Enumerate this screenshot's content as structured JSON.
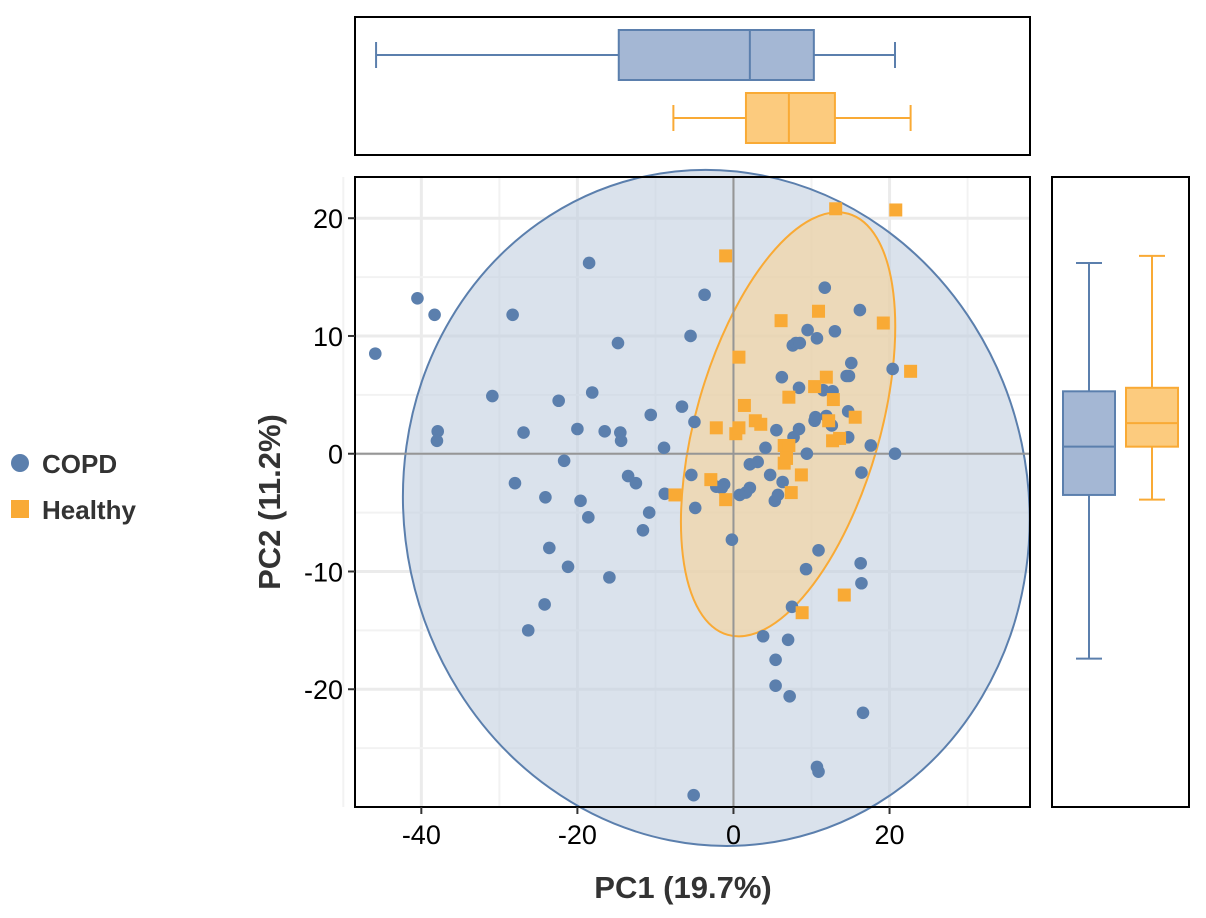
{
  "chart_data": {
    "type": "scatter",
    "xlabel": "PC1  (19.7%)",
    "ylabel": "PC2  (11.2%)",
    "xlim": [
      -48.5,
      38
    ],
    "ylim": [
      -30,
      23.5
    ],
    "xticks": [
      -40,
      -20,
      0,
      20
    ],
    "yticks": [
      -20,
      -10,
      0,
      10,
      20
    ],
    "xtick_labels": [
      "-40",
      "-20",
      "0",
      "20"
    ],
    "ytick_labels": [
      "-20",
      "-10",
      "0",
      "10",
      "20"
    ],
    "grid": true,
    "legend_position": "left",
    "series": [
      {
        "name": "COPD",
        "color": "#5b7fad",
        "marker": "circle",
        "points": [
          [
            -45.9,
            8.5
          ],
          [
            -40.5,
            13.2
          ],
          [
            -38.3,
            11.8
          ],
          [
            -37.9,
            1.9
          ],
          [
            -38.0,
            1.1
          ],
          [
            -30.9,
            4.9
          ],
          [
            -28.3,
            11.8
          ],
          [
            -28.0,
            -2.5
          ],
          [
            -26.9,
            1.8
          ],
          [
            -26.3,
            -15.0
          ],
          [
            -24.1,
            -3.7
          ],
          [
            -24.2,
            -12.8
          ],
          [
            -23.6,
            -8.0
          ],
          [
            -22.4,
            4.5
          ],
          [
            -21.7,
            -0.6
          ],
          [
            -21.2,
            -9.6
          ],
          [
            -18.5,
            16.2
          ],
          [
            -20.0,
            2.1
          ],
          [
            -19.6,
            -4.0
          ],
          [
            -18.6,
            -5.4
          ],
          [
            -18.1,
            5.2
          ],
          [
            -16.5,
            1.9
          ],
          [
            -15.9,
            -10.5
          ],
          [
            -14.8,
            9.4
          ],
          [
            -14.5,
            1.8
          ],
          [
            -14.4,
            1.1
          ],
          [
            -13.5,
            -1.9
          ],
          [
            -12.5,
            -2.5
          ],
          [
            -11.6,
            -6.5
          ],
          [
            -10.8,
            -5.0
          ],
          [
            -10.6,
            3.3
          ],
          [
            -8.9,
            0.5
          ],
          [
            -8.8,
            -3.4
          ],
          [
            -6.6,
            4.0
          ],
          [
            -5.5,
            10.0
          ],
          [
            -5.4,
            -1.8
          ],
          [
            -4.9,
            -4.6
          ],
          [
            -5.0,
            2.7
          ],
          [
            -3.7,
            13.5
          ],
          [
            -2.2,
            -2.8
          ],
          [
            -1.2,
            -2.6
          ],
          [
            -1.5,
            -2.9
          ],
          [
            -0.2,
            -7.3
          ],
          [
            0.8,
            -3.5
          ],
          [
            1.6,
            -3.3
          ],
          [
            2.1,
            -2.9
          ],
          [
            2.1,
            -0.9
          ],
          [
            3.1,
            -0.7
          ],
          [
            4.1,
            0.5
          ],
          [
            3.8,
            -15.5
          ],
          [
            4.7,
            -1.8
          ],
          [
            5.4,
            -17.5
          ],
          [
            5.3,
            -4.0
          ],
          [
            5.4,
            -19.7
          ],
          [
            5.5,
            2.0
          ],
          [
            5.7,
            -3.5
          ],
          [
            6.2,
            6.5
          ],
          [
            6.3,
            -2.4
          ],
          [
            6.8,
            0.2
          ],
          [
            7.0,
            -15.8
          ],
          [
            7.2,
            -20.6
          ],
          [
            7.5,
            -13.0
          ],
          [
            7.7,
            1.4
          ],
          [
            7.6,
            9.2
          ],
          [
            8.0,
            9.4
          ],
          [
            8.5,
            9.4
          ],
          [
            8.4,
            2.1
          ],
          [
            8.4,
            5.6
          ],
          [
            9.4,
            0.0
          ],
          [
            9.3,
            -9.8
          ],
          [
            9.5,
            10.5
          ],
          [
            10.4,
            2.8
          ],
          [
            10.5,
            3.1
          ],
          [
            10.7,
            -26.6
          ],
          [
            10.9,
            -27.0
          ],
          [
            10.9,
            -8.2
          ],
          [
            10.7,
            9.8
          ],
          [
            11.7,
            14.1
          ],
          [
            11.5,
            5.4
          ],
          [
            11.9,
            3.2
          ],
          [
            12.6,
            2.4
          ],
          [
            12.7,
            5.3
          ],
          [
            13.0,
            10.4
          ],
          [
            13.7,
            1.3
          ],
          [
            14.5,
            6.6
          ],
          [
            14.7,
            3.6
          ],
          [
            14.8,
            6.6
          ],
          [
            14.7,
            1.4
          ],
          [
            15.1,
            7.7
          ],
          [
            16.2,
            12.2
          ],
          [
            16.3,
            -9.3
          ],
          [
            16.4,
            -11.0
          ],
          [
            16.4,
            -1.6
          ],
          [
            16.6,
            -22.0
          ],
          [
            17.6,
            0.7
          ],
          [
            20.4,
            7.2
          ],
          [
            20.7,
            0.0
          ],
          [
            -5.1,
            -29.0
          ]
        ]
      },
      {
        "name": "Healthy",
        "color": "#f9aa35",
        "marker": "square",
        "points": [
          [
            -7.5,
            -3.5
          ],
          [
            -2.9,
            -2.2
          ],
          [
            -2.2,
            2.2
          ],
          [
            -1.0,
            16.8
          ],
          [
            -1.0,
            -3.9
          ],
          [
            0.3,
            1.7
          ],
          [
            0.7,
            8.2
          ],
          [
            0.7,
            2.2
          ],
          [
            1.4,
            4.1
          ],
          [
            2.8,
            2.8
          ],
          [
            3.5,
            2.5
          ],
          [
            6.1,
            11.3
          ],
          [
            6.5,
            0.7
          ],
          [
            6.5,
            -0.8
          ],
          [
            6.8,
            -0.4
          ],
          [
            7.1,
            4.8
          ],
          [
            7.1,
            0.7
          ],
          [
            7.4,
            -3.3
          ],
          [
            8.7,
            -1.8
          ],
          [
            8.8,
            -13.5
          ],
          [
            10.4,
            5.7
          ],
          [
            10.9,
            12.1
          ],
          [
            11.9,
            6.5
          ],
          [
            12.2,
            2.8
          ],
          [
            12.7,
            1.1
          ],
          [
            12.8,
            4.6
          ],
          [
            13.6,
            1.3
          ],
          [
            13.1,
            20.8
          ],
          [
            14.2,
            -12.0
          ],
          [
            15.6,
            3.1
          ],
          [
            19.2,
            11.1
          ],
          [
            20.8,
            20.7
          ],
          [
            22.7,
            7.0
          ]
        ]
      }
    ],
    "ellipses": [
      {
        "series": "COPD",
        "cx": -2.2,
        "cy": -4.6,
        "rx": 40.0,
        "ry": 28.8,
        "angle_deg": -12,
        "fill": "#c4d0e1",
        "stroke": "#5b7fad"
      },
      {
        "series": "Healthy",
        "cx": 7.0,
        "cy": 2.5,
        "rx": 11.8,
        "ry": 18.6,
        "angle_deg": 16,
        "fill": "#f7d49a",
        "stroke": "#f9aa35"
      }
    ],
    "x_boxplots": [
      {
        "series": "COPD",
        "whisker_low": -45.8,
        "q1": -14.7,
        "median": 2.1,
        "q3": 10.3,
        "whisker_high": 20.7
      },
      {
        "series": "Healthy",
        "whisker_low": -7.7,
        "q1": 1.6,
        "median": 7.1,
        "q3": 13.0,
        "whisker_high": 22.7
      }
    ],
    "y_boxplots": [
      {
        "series": "COPD",
        "whisker_low": -17.4,
        "q1": -3.5,
        "median": 0.6,
        "q3": 5.3,
        "whisker_high": 16.2
      },
      {
        "series": "Healthy",
        "whisker_low": -3.9,
        "q1": 0.6,
        "median": 2.6,
        "q3": 5.6,
        "whisker_high": 16.8
      }
    ]
  }
}
